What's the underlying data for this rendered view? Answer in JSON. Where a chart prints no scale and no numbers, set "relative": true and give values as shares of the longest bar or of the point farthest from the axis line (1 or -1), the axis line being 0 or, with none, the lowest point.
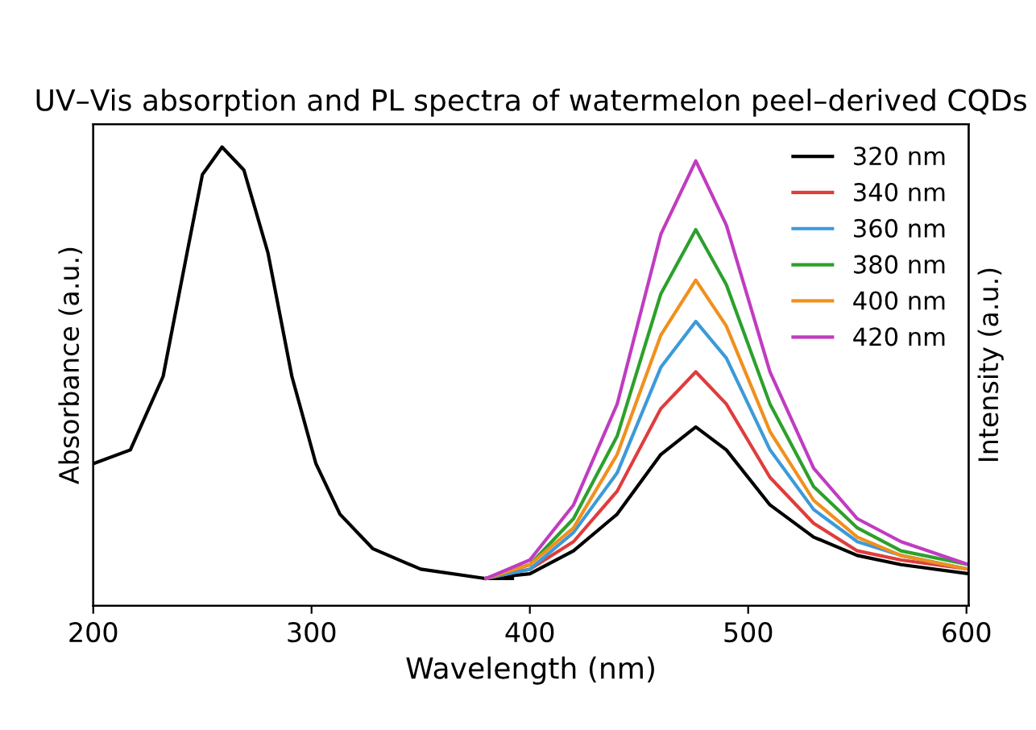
{
  "chart_data": {
    "type": "line",
    "title": "UV–Vis absorption and PL spectra of watermelon peel–derived CQDs",
    "xlabel": "Wavelength (nm)",
    "ylabel": "Absorbance (a.u.)",
    "y2label": "Intensity (a.u.)",
    "relative": true,
    "xlim": [
      200,
      601
    ],
    "xticks": [
      200,
      300,
      400,
      500,
      600
    ],
    "legend": "top right",
    "grid": false,
    "marker": "none",
    "line_style": "solid",
    "series": [
      {
        "color": "#000000",
        "x": [
          200,
          217,
          232,
          243,
          250,
          259,
          269,
          280,
          291,
          302,
          313,
          328,
          350,
          379,
          392
        ],
        "values": [
          0.31,
          0.34,
          0.5,
          0.77,
          0.94,
          1.0,
          0.95,
          0.77,
          0.5,
          0.31,
          0.2,
          0.125,
          0.08,
          0.06,
          0.06
        ]
      },
      {
        "name": "320 nm",
        "color": "#000000",
        "x": [
          380,
          400,
          420,
          440,
          460,
          476,
          490,
          510,
          530,
          550,
          570,
          601
        ],
        "values": [
          0.06,
          0.07,
          0.12,
          0.2,
          0.33,
          0.39,
          0.34,
          0.22,
          0.15,
          0.11,
          0.09,
          0.07
        ]
      },
      {
        "name": "340 nm",
        "color": "#e03c3c",
        "x": [
          380,
          400,
          420,
          440,
          460,
          476,
          490,
          510,
          530,
          550,
          570,
          601
        ],
        "values": [
          0.06,
          0.08,
          0.14,
          0.25,
          0.43,
          0.51,
          0.44,
          0.28,
          0.18,
          0.12,
          0.1,
          0.08
        ]
      },
      {
        "name": "360 nm",
        "color": "#3c9ad8",
        "x": [
          380,
          400,
          420,
          440,
          460,
          476,
          490,
          510,
          530,
          550,
          570,
          601
        ],
        "values": [
          0.06,
          0.08,
          0.16,
          0.29,
          0.52,
          0.62,
          0.54,
          0.34,
          0.21,
          0.14,
          0.11,
          0.08
        ]
      },
      {
        "name": "380 nm",
        "color": "#2ca02c",
        "x": [
          380,
          400,
          420,
          440,
          460,
          476,
          490,
          510,
          530,
          550,
          570,
          601
        ],
        "values": [
          0.06,
          0.09,
          0.19,
          0.37,
          0.68,
          0.82,
          0.7,
          0.44,
          0.26,
          0.17,
          0.12,
          0.09
        ]
      },
      {
        "name": "400 nm",
        "color": "#f0901e",
        "x": [
          380,
          400,
          420,
          440,
          460,
          476,
          490,
          510,
          530,
          550,
          570,
          601
        ],
        "values": [
          0.06,
          0.09,
          0.17,
          0.33,
          0.59,
          0.71,
          0.61,
          0.38,
          0.23,
          0.15,
          0.11,
          0.08
        ]
      },
      {
        "name": "420 nm",
        "color": "#c03cc0",
        "x": [
          380,
          400,
          420,
          440,
          460,
          476,
          490,
          510,
          530,
          550,
          570,
          601
        ],
        "values": [
          0.06,
          0.1,
          0.22,
          0.44,
          0.81,
          0.97,
          0.83,
          0.51,
          0.3,
          0.19,
          0.14,
          0.09
        ]
      }
    ]
  }
}
